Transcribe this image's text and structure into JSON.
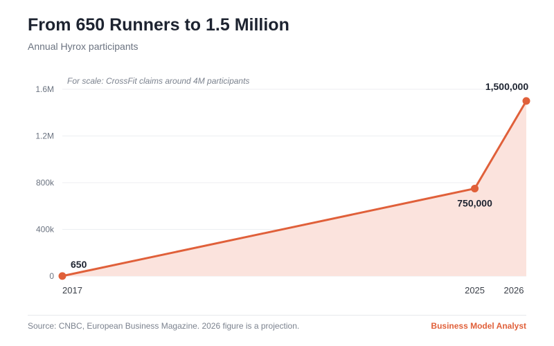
{
  "header": {
    "title": "From 650 Runners to 1.5 Million",
    "subtitle": "Annual Hyrox participants"
  },
  "footer": {
    "source": "Source: CNBC, European Business Magazine. 2026 figure is a projection.",
    "brand": "Business Model Analyst"
  },
  "colors": {
    "accent": "#e0603a",
    "area_fill": "#fbe3dd",
    "grid": "#eceef1",
    "text_dark": "#1d2330",
    "text_muted": "#6b7380"
  },
  "chart_data": {
    "type": "area",
    "x": [
      "2017",
      "2025",
      "2026"
    ],
    "x_numeric": [
      2017,
      2025,
      2026
    ],
    "values": [
      650,
      750000,
      1500000
    ],
    "data_labels": [
      "650",
      "750,000",
      "1,500,000"
    ],
    "ylim": [
      0,
      1600000
    ],
    "yticks": [
      0,
      400000,
      800000,
      1200000,
      1600000
    ],
    "ytick_labels": [
      "0",
      "400k",
      "800k",
      "1.2M",
      "1.6M"
    ],
    "annotation": "For scale: CrossFit claims around 4M participants",
    "grid": true,
    "legend": false
  }
}
